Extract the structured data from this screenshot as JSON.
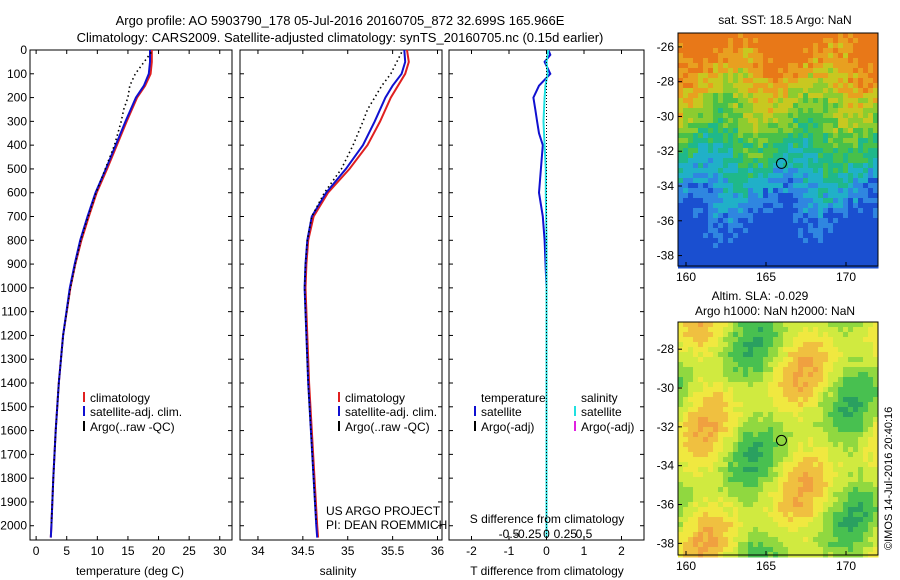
{
  "header": {
    "line1": "Argo profile: AO 5903790_178 05-Jul-2016 20160705_872 32.699S 165.966E",
    "line2": "Climatology: CARS2009. Satellite-adjusted climatology: synTS_20160705.nc (0.15d earlier)"
  },
  "colors": {
    "climatology": "#e02020",
    "satellite": "#1010d0",
    "argo": "#000000",
    "satellite_s": "#20e0e0",
    "argo_s": "#e020e0"
  },
  "credits": {
    "project": "US ARGO PROJECT",
    "pi": "PI: DEAN ROEMMICH",
    "stamp": "©IMOS 14-Jul-2016 20:40:16"
  },
  "chart_data": [
    {
      "type": "line",
      "xlabel": "temperature (deg C)",
      "ylabel": "",
      "xlim": [
        -1,
        32
      ],
      "ylim": [
        2060,
        0
      ],
      "xticks": [
        0,
        5,
        10,
        15,
        20,
        25,
        30
      ],
      "yticks": [
        0,
        100,
        200,
        300,
        400,
        500,
        600,
        700,
        800,
        900,
        1000,
        1100,
        1200,
        1300,
        1400,
        1500,
        1600,
        1700,
        1800,
        1900,
        2000
      ],
      "legend": [
        "climatology",
        "satellite-adj. clim.",
        "Argo(..raw -QC)"
      ],
      "series": [
        {
          "name": "climatology",
          "depth": [
            0,
            50,
            100,
            150,
            200,
            300,
            400,
            500,
            600,
            700,
            800,
            900,
            1000,
            1200,
            1400,
            1600,
            1800,
            2000,
            2050
          ],
          "values": [
            18.9,
            18.9,
            18.7,
            17.8,
            16.5,
            14.8,
            13.2,
            11.6,
            9.9,
            8.6,
            7.4,
            6.4,
            5.6,
            4.4,
            3.7,
            3.2,
            2.8,
            2.5,
            2.4
          ]
        },
        {
          "name": "satellite-adj. clim.",
          "depth": [
            0,
            50,
            100,
            150,
            200,
            300,
            400,
            500,
            600,
            700,
            800,
            900,
            1000,
            1200,
            1400,
            1600,
            1800,
            2000,
            2050
          ],
          "values": [
            18.6,
            18.6,
            18.4,
            17.6,
            16.3,
            14.6,
            13.0,
            11.4,
            9.7,
            8.4,
            7.2,
            6.3,
            5.5,
            4.4,
            3.7,
            3.2,
            2.8,
            2.5,
            2.4
          ]
        },
        {
          "name": "Argo(..raw -QC)",
          "depth": [
            10,
            100,
            150,
            200,
            250,
            300,
            400,
            500,
            600,
            700,
            800,
            900,
            1000,
            1200,
            1400,
            1600,
            1800,
            1990
          ],
          "values": [
            18.8,
            16.2,
            15.3,
            15.0,
            14.3,
            13.9,
            12.8,
            11.3,
            9.8,
            8.5,
            7.3,
            6.4,
            5.6,
            4.4,
            3.7,
            3.2,
            2.8,
            2.5
          ]
        }
      ]
    },
    {
      "type": "line",
      "xlabel": "salinity",
      "xlim": [
        33.8,
        36.05
      ],
      "ylim": [
        2060,
        0
      ],
      "xticks": [
        34,
        34.5,
        35,
        35.5,
        36
      ],
      "legend": [
        "climatology",
        "satellite-adj. clim.",
        "Argo(..raw -QC)"
      ],
      "series": [
        {
          "name": "climatology",
          "depth": [
            0,
            50,
            100,
            150,
            200,
            300,
            400,
            500,
            600,
            700,
            800,
            900,
            1000,
            1200,
            1400,
            1600,
            1800,
            2000,
            2050
          ],
          "values": [
            35.66,
            35.68,
            35.64,
            35.56,
            35.48,
            35.36,
            35.22,
            35.02,
            34.78,
            34.62,
            34.56,
            34.54,
            34.53,
            34.55,
            34.57,
            34.6,
            34.63,
            34.66,
            34.67
          ]
        },
        {
          "name": "satellite-adj. clim.",
          "depth": [
            0,
            50,
            100,
            150,
            200,
            300,
            400,
            500,
            600,
            700,
            800,
            900,
            1000,
            1200,
            1400,
            1600,
            1800,
            2000,
            2050
          ],
          "values": [
            35.63,
            35.64,
            35.6,
            35.5,
            35.42,
            35.3,
            35.17,
            34.98,
            34.76,
            34.6,
            34.55,
            34.53,
            34.52,
            34.54,
            34.56,
            34.59,
            34.62,
            34.65,
            34.66
          ]
        },
        {
          "name": "Argo(..raw -QC)",
          "depth": [
            10,
            100,
            150,
            200,
            250,
            300,
            400,
            500,
            600,
            700,
            800,
            900,
            1000,
            1200,
            1400,
            1600,
            1800,
            1990
          ],
          "values": [
            35.6,
            35.48,
            35.38,
            35.3,
            35.22,
            35.17,
            35.06,
            34.93,
            34.74,
            34.6,
            34.55,
            34.53,
            34.52,
            34.54,
            34.56,
            34.59,
            34.62,
            34.65
          ]
        }
      ]
    },
    {
      "type": "line",
      "xlabel": "T difference from climatology",
      "xlabel2": "S difference from climatology",
      "xlim": [
        -2.6,
        2.6
      ],
      "xticks": [
        -2,
        -1,
        0,
        1,
        2
      ],
      "xticks_s": [
        "-0.5",
        "-0.25",
        "0",
        "0.25",
        "0.5"
      ],
      "ylim": [
        2060,
        0
      ],
      "legend_t_title": "temperature",
      "legend_s_title": "salinity",
      "legend_t": [
        "satellite",
        "Argo(-adj)"
      ],
      "legend_s": [
        "satellite",
        "Argo(-adj)"
      ],
      "series": [
        {
          "name": "T satellite",
          "depth": [
            0,
            20,
            50,
            100,
            150,
            200,
            250,
            300,
            350,
            400,
            500,
            600,
            700,
            800,
            1000,
            1400,
            1800,
            2050
          ],
          "values": [
            0.05,
            0.1,
            -0.05,
            0.1,
            -0.2,
            -0.35,
            -0.3,
            -0.25,
            -0.2,
            -0.1,
            -0.15,
            -0.2,
            -0.1,
            -0.05,
            0.0,
            0.0,
            0.0,
            0.0
          ]
        },
        {
          "name": "S satellite",
          "depth": [
            0,
            50,
            100,
            150,
            200,
            300,
            400,
            500,
            600,
            800,
            1000,
            1400,
            1800,
            2050
          ],
          "values": [
            0.05,
            0.0,
            0.03,
            -0.03,
            -0.05,
            -0.08,
            -0.05,
            -0.02,
            -0.02,
            0.0,
            0.0,
            0.0,
            0.0,
            0.0
          ]
        }
      ]
    },
    {
      "type": "heatmap",
      "title": "sat. SST: 18.5  Argo: NaN",
      "xlim": [
        159.5,
        172
      ],
      "ylim": [
        -38.6,
        -25.2
      ],
      "xticks": [
        160,
        165,
        170
      ],
      "yticks": [
        -26,
        -28,
        -30,
        -32,
        -34,
        -36,
        -38
      ],
      "marker": [
        165.966,
        -32.699
      ]
    },
    {
      "type": "heatmap",
      "title_line1": "Altim. SLA: -0.029",
      "title_line2": "Argo h1000: NaN  h2000: NaN",
      "xlim": [
        159.5,
        172
      ],
      "ylim": [
        -38.6,
        -26.6
      ],
      "xticks": [
        160,
        165,
        170
      ],
      "yticks": [
        -28,
        -30,
        -32,
        -34,
        -36,
        -38
      ],
      "marker": [
        165.966,
        -32.699
      ]
    }
  ]
}
